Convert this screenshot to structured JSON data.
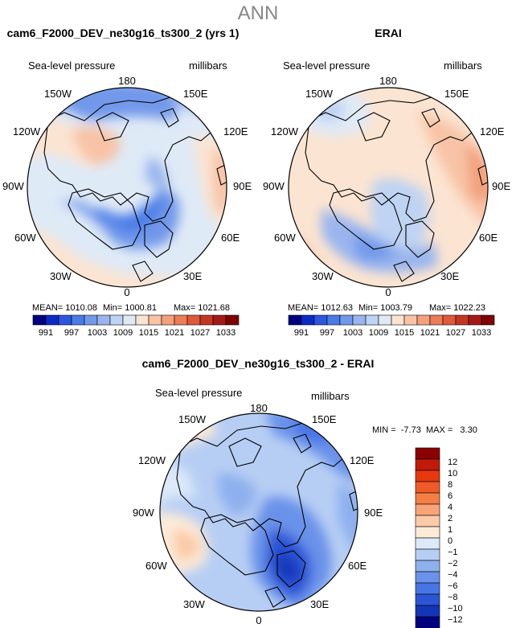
{
  "figure": {
    "season": "ANN",
    "colors": {
      "land_outline": "#000000",
      "background": "#ffffff"
    }
  },
  "chart_data": [
    {
      "type": "polar-contour-map",
      "title": "cam6_F2000_DEV_ne30g16_ts300_2 (yrs 1)",
      "field": "Sea-level pressure",
      "units": "millibars",
      "longitude_labels": [
        "180",
        "150E",
        "120E",
        "90E",
        "60E",
        "30E",
        "0",
        "30W",
        "60W",
        "90W",
        "120W",
        "150W"
      ],
      "stats": {
        "mean_label": "MEAN= 1010.08",
        "min_label": "Min= 1000.81",
        "max_label": "Max= 1021.68",
        "mean": 1010.08,
        "min": 1000.81,
        "max": 1021.68
      },
      "colorbar": {
        "labels": [
          "991",
          "997",
          "1003",
          "1009",
          "1015",
          "1021",
          "1027",
          "1033"
        ],
        "colors": [
          "#000080",
          "#0a2bc4",
          "#2c55e0",
          "#4a7be8",
          "#7198ea",
          "#9ab5ee",
          "#bfd3f2",
          "#dfeaf7",
          "#fbe4d2",
          "#f8c3a6",
          "#f3a07c",
          "#ec7d58",
          "#dd5a3a",
          "#c43623",
          "#a51818",
          "#800000"
        ]
      }
    },
    {
      "type": "polar-contour-map",
      "title": "ERAI",
      "field": "Sea-level pressure",
      "units": "millibars",
      "longitude_labels": [
        "180",
        "150E",
        "120E",
        "90E",
        "60E",
        "30E",
        "0",
        "30W",
        "60W",
        "90W",
        "120W",
        "150W"
      ],
      "stats": {
        "mean_label": "MEAN= 1012.63",
        "min_label": "Min= 1003.79",
        "max_label": "Max= 1022.23",
        "mean": 1012.63,
        "min": 1003.79,
        "max": 1022.23
      },
      "colorbar": {
        "labels": [
          "991",
          "997",
          "1003",
          "1009",
          "1015",
          "1021",
          "1027",
          "1033"
        ],
        "colors": [
          "#000080",
          "#0a2bc4",
          "#2c55e0",
          "#4a7be8",
          "#7198ea",
          "#9ab5ee",
          "#bfd3f2",
          "#dfeaf7",
          "#fbe4d2",
          "#f8c3a6",
          "#f3a07c",
          "#ec7d58",
          "#dd5a3a",
          "#c43623",
          "#a51818",
          "#800000"
        ]
      }
    },
    {
      "type": "polar-contour-map",
      "title": "cam6_F2000_DEV_ne30g16_ts300_2 - ERAI",
      "field": "Sea-level pressure",
      "units": "millibars",
      "longitude_labels": [
        "180",
        "150E",
        "120E",
        "90E",
        "60E",
        "30E",
        "0",
        "30W",
        "60W",
        "90W",
        "120W",
        "150W"
      ],
      "stats": {
        "minmax_label": "MIN =  -7.73  MAX =   3.30",
        "min": -7.73,
        "max": 3.3
      },
      "colorbar": {
        "labels": [
          "12",
          "10",
          "8",
          "6",
          "4",
          "2",
          "1",
          "0",
          "−1",
          "−2",
          "−4",
          "−6",
          "−8",
          "−10",
          "−12"
        ],
        "colors": [
          "#8b0000",
          "#c21a0a",
          "#e8380e",
          "#f05a28",
          "#f57e45",
          "#f8a478",
          "#fbcaa8",
          "#fdebd8",
          "#dce9f8",
          "#b7cef4",
          "#8eb0ee",
          "#6a92ea",
          "#4775e6",
          "#2a55d6",
          "#1535b8",
          "#000080"
        ]
      }
    }
  ]
}
